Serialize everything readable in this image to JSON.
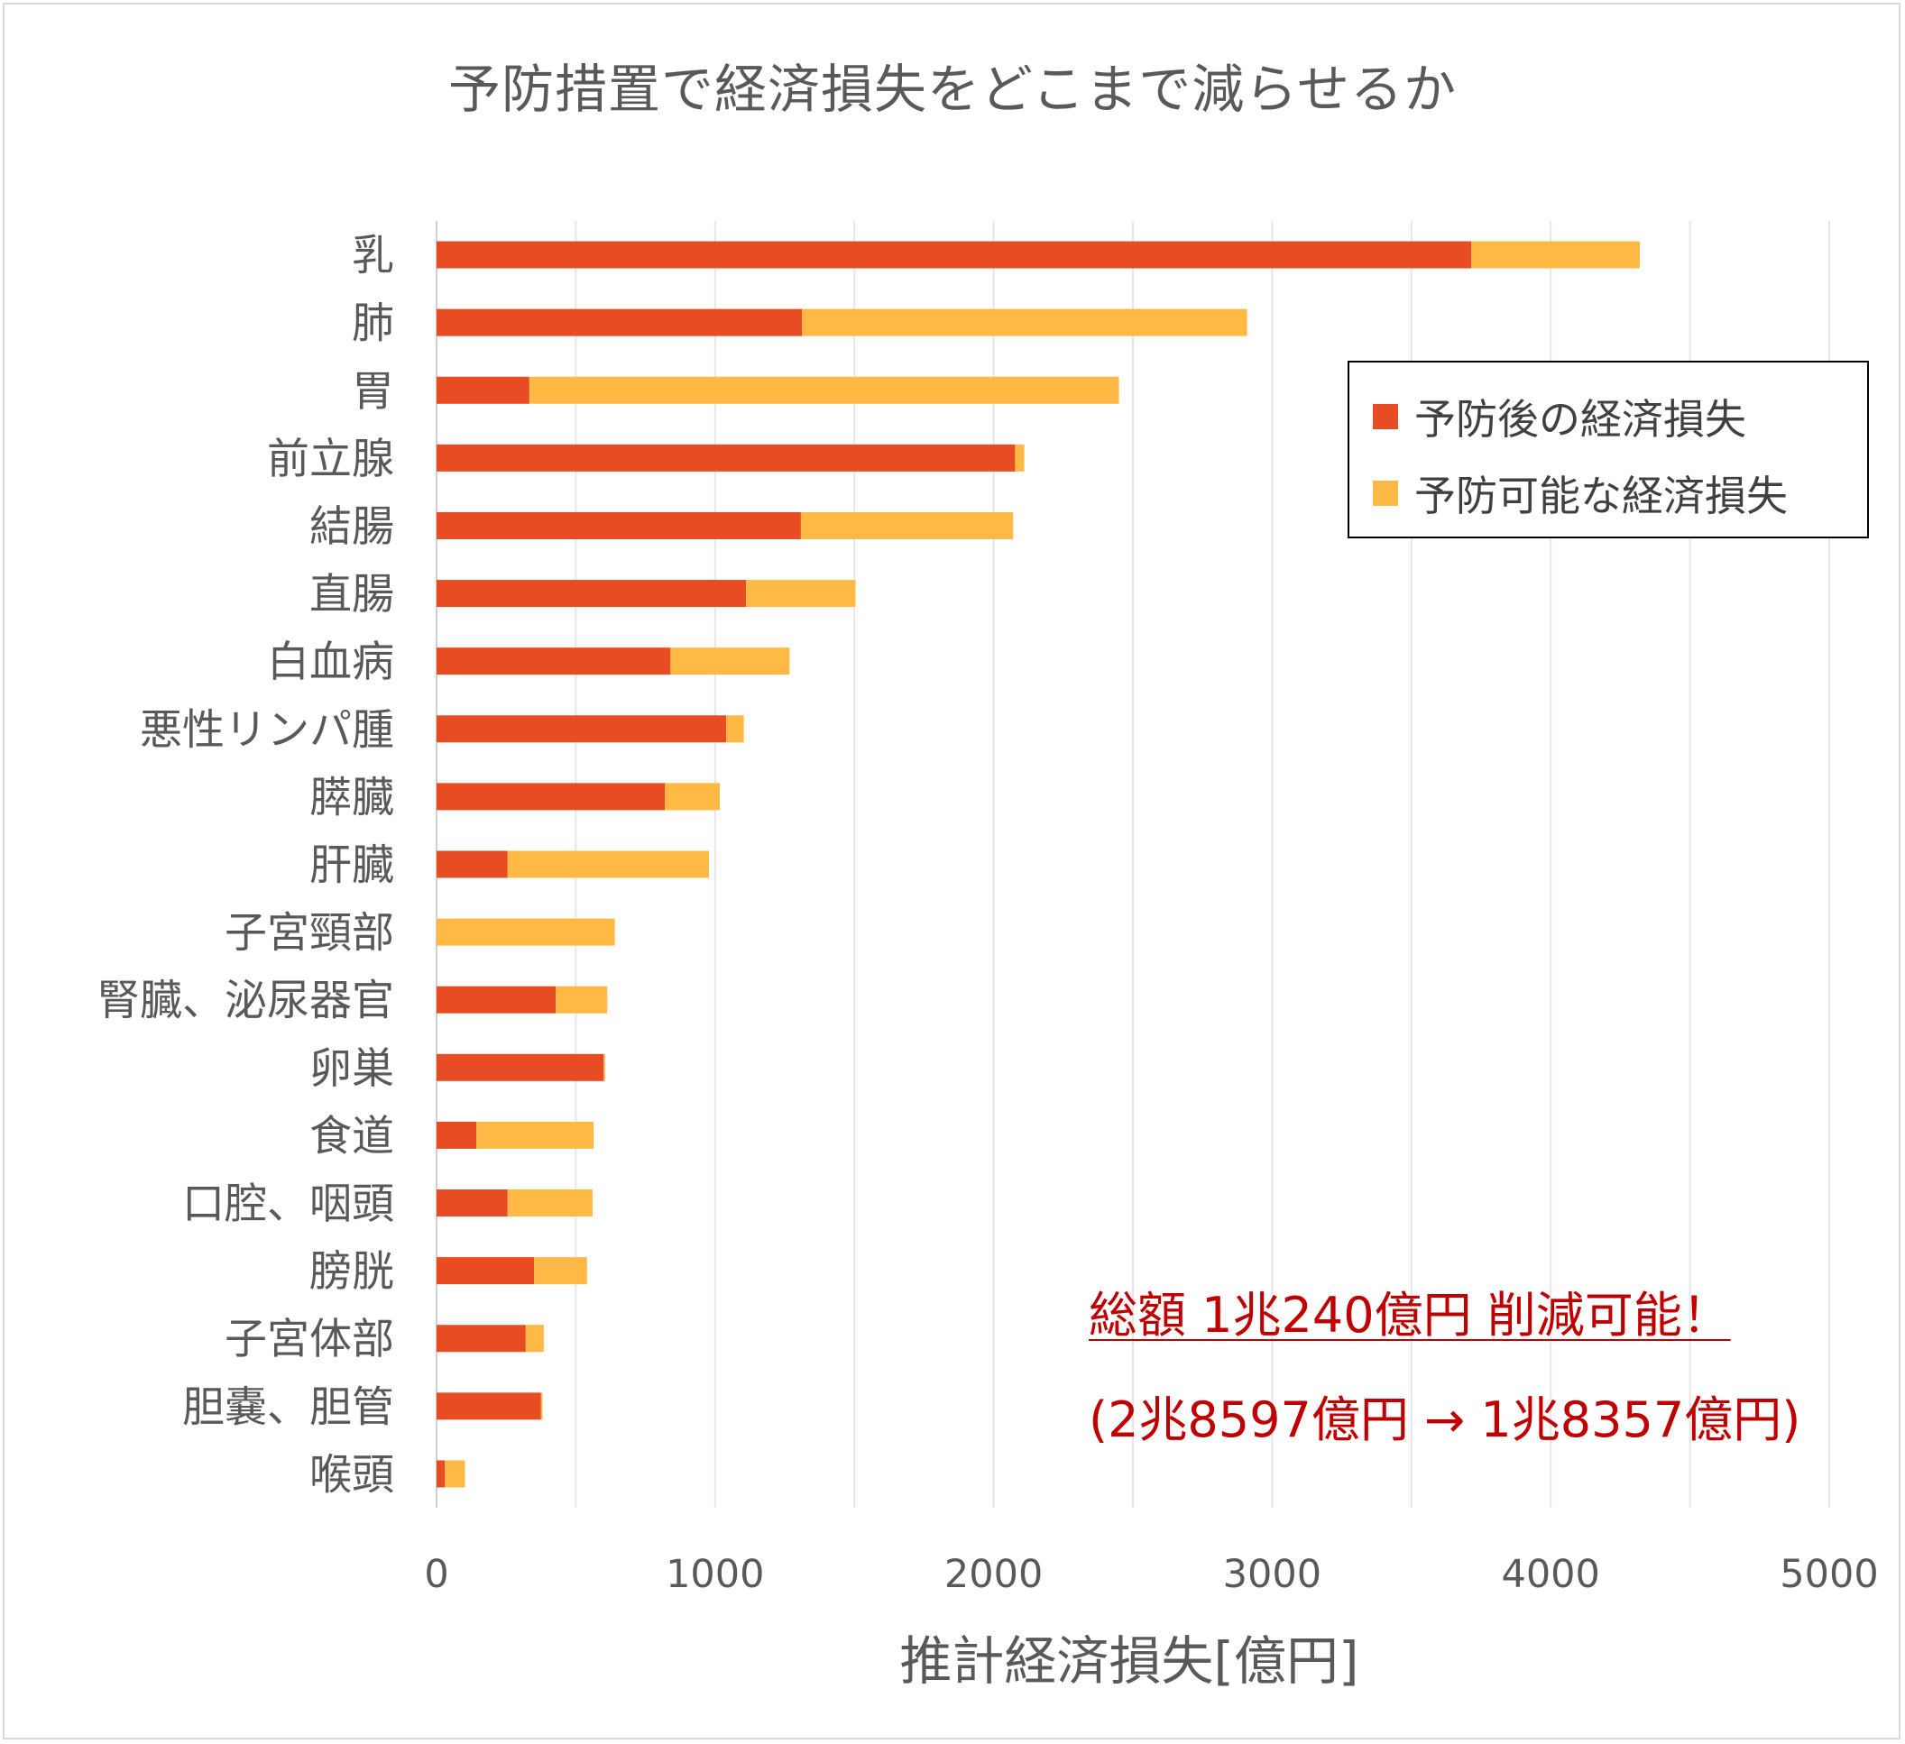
{
  "chart_data": {
    "type": "bar",
    "orientation": "horizontal",
    "stacked": true,
    "title": "予防措置で経済損失をどこまで減らせるか",
    "xlabel": "推計経済損失[億円]",
    "ylabel": "",
    "xlim": [
      0,
      5000
    ],
    "x_ticks": [
      0,
      1000,
      2000,
      3000,
      4000,
      5000
    ],
    "x_tick_labels": [
      "0",
      "1000",
      "2000",
      "3000",
      "4000",
      "5000"
    ],
    "grid": true,
    "legend_position": "top-right",
    "categories": [
      "乳",
      "肺",
      "胃",
      "前立腺",
      "結腸",
      "直腸",
      "白血病",
      "悪性リンパ腫",
      "膵臓",
      "肝臓",
      "子宮頸部",
      "腎臓、泌尿器官",
      "卵巣",
      "食道",
      "口腔、咽頭",
      "膀胱",
      "子宮体部",
      "胆嚢、胆管",
      "喉頭"
    ],
    "series": [
      {
        "name": "予防後の経済損失",
        "color": "#e84c22",
        "values": [
          3715,
          1312,
          333,
          2077,
          1308,
          1111,
          840,
          1040,
          820,
          255,
          0,
          428,
          600,
          143,
          255,
          350,
          320,
          375,
          30
        ]
      },
      {
        "name": "予防可能な経済損失",
        "color": "#ffb944",
        "values": [
          605,
          1598,
          2117,
          33,
          762,
          393,
          427,
          63,
          197,
          723,
          640,
          185,
          5,
          421,
          305,
          190,
          65,
          5,
          72
        ]
      }
    ]
  },
  "annotation": {
    "main": "総額 1兆240億円 削減可能！",
    "sub": "(2兆8597億円 → 1兆8357億円)"
  }
}
